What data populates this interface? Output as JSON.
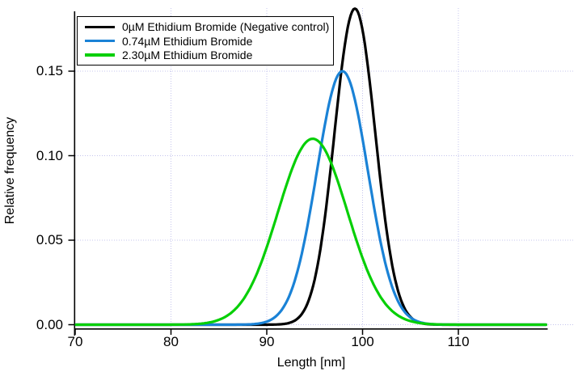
{
  "chart_data": {
    "type": "line",
    "title": "",
    "xlabel": "Length [nm]",
    "ylabel": "Relative frequency",
    "xlim": [
      70,
      119.3
    ],
    "ylim": [
      0,
      0.1885
    ],
    "xticks": [
      70,
      80,
      90,
      100,
      110
    ],
    "xtick_labels": [
      "70",
      "80",
      "90",
      "100",
      "110"
    ],
    "yticks": [
      0,
      0.05,
      0.1,
      0.15
    ],
    "ytick_labels": [
      "0.00",
      "0.05",
      "0.10",
      "0.15"
    ],
    "grid": {
      "visible": true,
      "style": "dotted",
      "color": "#c4c4ec",
      "at": "major-ticks"
    },
    "axis_color": "#000000",
    "legend": {
      "position": "top-left",
      "border_color": "#000000",
      "background": "#ffffff"
    },
    "series": [
      {
        "name": "0µM Ethidium Bromide (Negative control)",
        "color": "#000000",
        "shape": "gaussian",
        "mean": 99.2,
        "sd": 2.13,
        "peak": 0.187
      },
      {
        "name": "0.74µM Ethidium Bromide",
        "color": "#1a82d6",
        "shape": "gaussian",
        "mean": 97.9,
        "sd": 2.66,
        "peak": 0.15
      },
      {
        "name": "2.30µM Ethidium Bromide",
        "color": "#06cf06",
        "shape": "gaussian",
        "mean": 94.8,
        "sd": 3.63,
        "peak": 0.11
      }
    ]
  }
}
